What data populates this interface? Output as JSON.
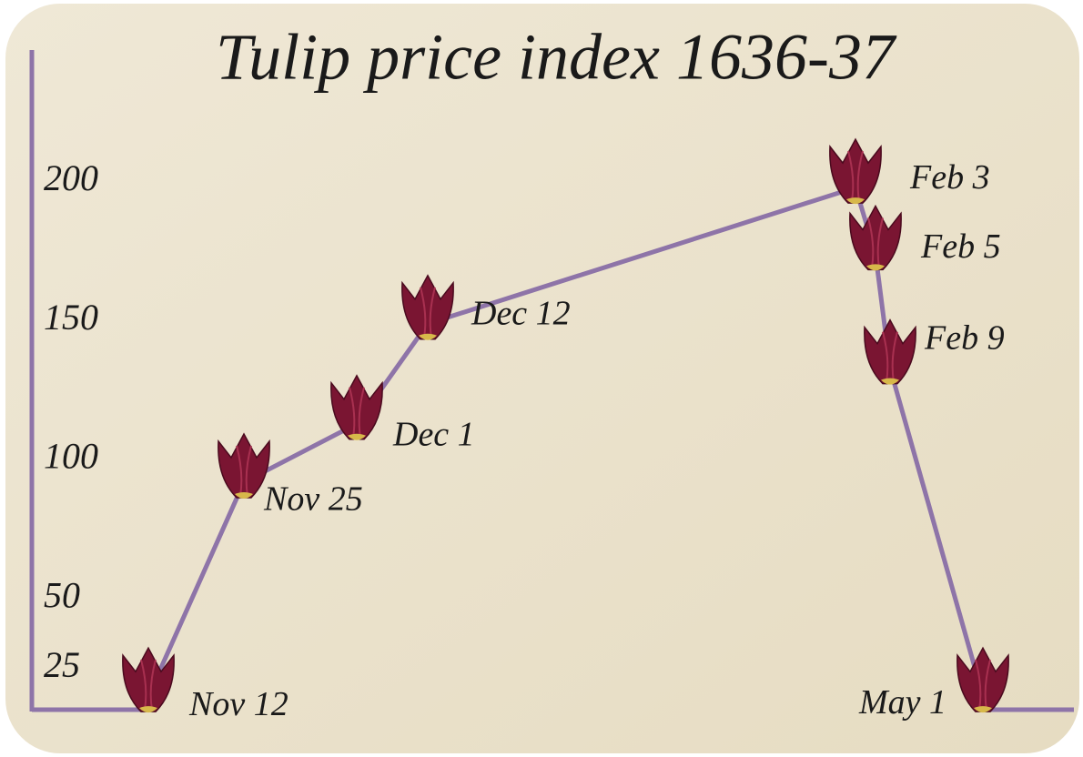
{
  "chart_data": {
    "type": "line",
    "title": "Tulip price index 1636-37",
    "categories": [
      "Nov 12",
      "Nov 25",
      "Dec 1",
      "Dec 12",
      "Feb 3",
      "Feb 5",
      "Feb 9",
      "May 1"
    ],
    "series": [
      {
        "name": "Tulip price index",
        "color": "#8e74a8",
        "values": [
          15,
          92,
          113,
          149,
          198,
          174,
          133,
          15
        ]
      }
    ],
    "ylim": [
      0,
      200
    ],
    "yticks": [
      25,
      50,
      100,
      150,
      200
    ]
  }
}
